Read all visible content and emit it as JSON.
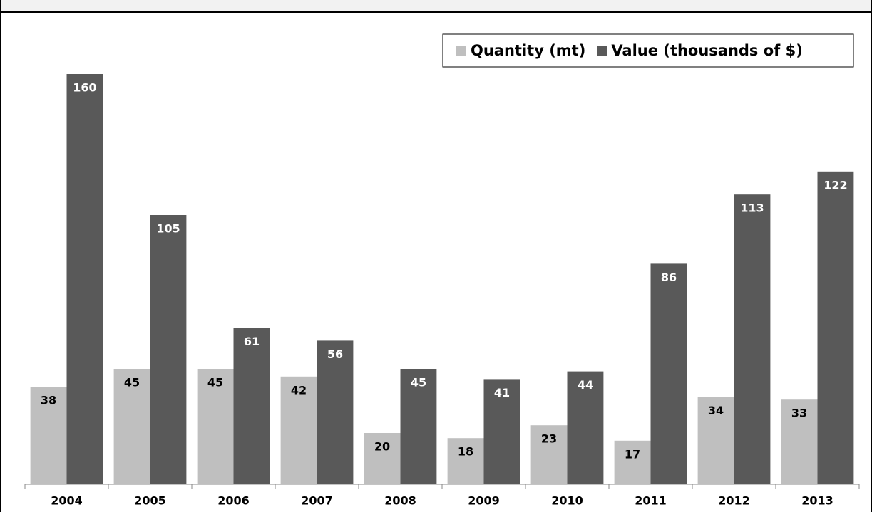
{
  "chart_data": {
    "type": "bar",
    "categories": [
      "2004",
      "2005",
      "2006",
      "2007",
      "2008",
      "2009",
      "2010",
      "2011",
      "2012",
      "2013"
    ],
    "series": [
      {
        "name": "Quantity (mt)",
        "color": "#bfbfbf",
        "values": [
          38,
          45,
          45,
          42,
          20,
          18,
          23,
          17,
          34,
          33
        ]
      },
      {
        "name": "Value (thousands of $)",
        "color": "#595959",
        "values": [
          160,
          105,
          61,
          56,
          45,
          41,
          44,
          86,
          113,
          122
        ]
      }
    ],
    "legend": "top-right"
  }
}
